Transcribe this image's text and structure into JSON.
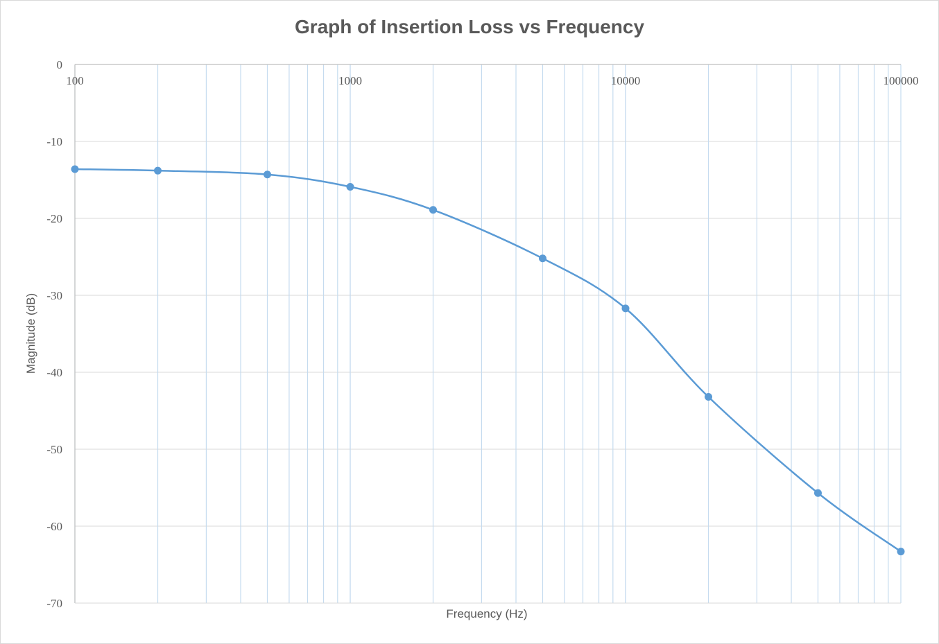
{
  "chart_data": {
    "type": "line",
    "title": "Graph of Insertion Loss vs Frequency",
    "xlabel": "Frequency (Hz)",
    "ylabel": "Magnitude (dB)",
    "x_scale": "log",
    "xlim": [
      100,
      100000
    ],
    "ylim": [
      -70,
      0
    ],
    "x_ticks": [
      "100",
      "1000",
      "10000",
      "100000"
    ],
    "y_ticks": [
      "0",
      "-10",
      "-20",
      "-30",
      "-40",
      "-50",
      "-60",
      "-70"
    ],
    "grid": true,
    "legend": "none",
    "line_color": "#5b9bd5",
    "grid_color": "#c5dbef",
    "series": [
      {
        "x": [
          100,
          200,
          500,
          1000,
          2000,
          5000,
          10000,
          20000,
          50000,
          100000
        ],
        "y": [
          -13.6,
          -13.8,
          -14.3,
          -15.9,
          -18.9,
          -25.2,
          -31.7,
          -43.2,
          -55.7,
          -63.3
        ]
      }
    ]
  }
}
